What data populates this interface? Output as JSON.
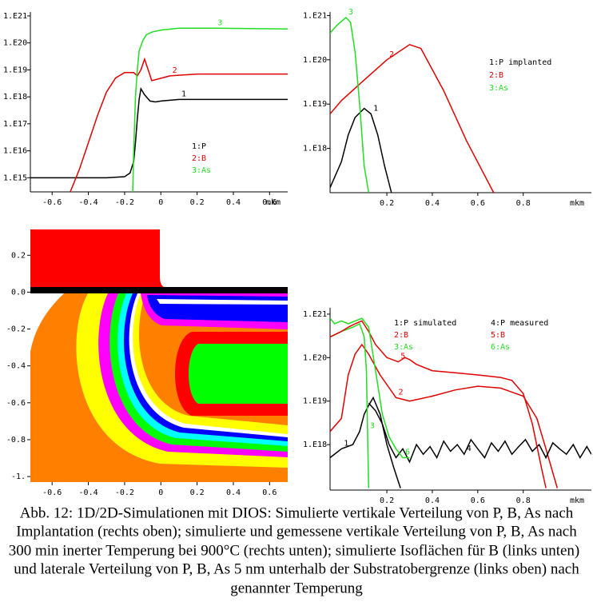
{
  "chart_data": [
    {
      "type": "line",
      "log": true,
      "xlabel": "mkm",
      "xlim": [
        -0.72,
        0.7
      ],
      "xticks": [
        -0.6,
        -0.4,
        -0.2,
        0,
        0.2,
        0.4,
        0.6
      ],
      "ylim": [
        300000000000000.0,
        1.4e+21
      ],
      "yticks": [
        {
          "value": 1000000000000000.0,
          "label": "1.E15"
        },
        {
          "value": 1e+16,
          "label": "1.E16"
        },
        {
          "value": 1e+17,
          "label": "1.E17"
        },
        {
          "value": 1e+18,
          "label": "1.E18"
        },
        {
          "value": 1e+19,
          "label": "1.E19"
        },
        {
          "value": 1e+20,
          "label": "1.E20"
        },
        {
          "value": 1e+21,
          "label": "1.E21"
        }
      ],
      "series": [
        {
          "name": "1:P",
          "label": "1",
          "color": "#000000",
          "x": [
            -0.72,
            -0.3,
            -0.2,
            -0.17,
            -0.15,
            -0.14,
            -0.13,
            -0.12,
            -0.11,
            -0.09,
            -0.06,
            -0.03,
            0.0,
            0.1,
            0.2,
            0.4,
            0.7
          ],
          "values": [
            1000000000000000.0,
            1000000000000000.0,
            1100000000000000.0,
            1500000000000000.0,
            4000000000000000.0,
            2e+16,
            1.5e+17,
            8e+17,
            2e+18,
            1.2e+18,
            7e+17,
            6.5e+17,
            7e+17,
            8e+17,
            8e+17,
            8e+17,
            8e+17
          ]
        },
        {
          "name": "2:B",
          "label": "2",
          "color": "#e00000",
          "x": [
            -0.5,
            -0.45,
            -0.4,
            -0.35,
            -0.3,
            -0.25,
            -0.2,
            -0.15,
            -0.13,
            -0.11,
            -0.09,
            -0.07,
            -0.05,
            -0.02,
            0.05,
            0.2,
            0.4,
            0.7
          ],
          "values": [
            300000000000000.0,
            2000000000000000.0,
            2e+16,
            2e+17,
            1.5e+18,
            5e+18,
            8e+18,
            8e+18,
            6e+18,
            1e+19,
            2.5e+19,
            1e+19,
            4e+18,
            4.5e+18,
            6e+18,
            7e+18,
            7e+18,
            7e+18
          ]
        },
        {
          "name": "3:As",
          "label": "3",
          "color": "#22dd22",
          "x": [
            -0.155,
            -0.15,
            -0.14,
            -0.13,
            -0.12,
            -0.1,
            -0.08,
            -0.05,
            0,
            0.1,
            0.3,
            0.7
          ],
          "values": [
            300000000000000.0,
            1e+16,
            1e+18,
            1e+19,
            5e+19,
            1.2e+20,
            2e+20,
            2.5e+20,
            3e+20,
            3.5e+20,
            3.5e+20,
            3.3e+20
          ]
        }
      ]
    },
    {
      "type": "line",
      "log": true,
      "xlabel": "mkm",
      "xlim": [
        -0.05,
        1.1
      ],
      "xticks": [
        0.2,
        0.4,
        0.6,
        0.8
      ],
      "ylim": [
        1e+17,
        1.2e+21
      ],
      "yticks": [
        {
          "value": 1e+18,
          "label": "1.E18"
        },
        {
          "value": 1e+19,
          "label": "1.E19"
        },
        {
          "value": 1e+20,
          "label": "1.E20"
        },
        {
          "value": 1e+21,
          "label": "1.E21"
        }
      ],
      "series": [
        {
          "name": "1:P implanted",
          "label": "1",
          "color": "#000000",
          "x": [
            -0.05,
            0,
            0.03,
            0.06,
            0.1,
            0.13,
            0.16,
            0.19,
            0.22
          ],
          "values": [
            1.3e+17,
            5e+17,
            2e+18,
            5e+18,
            8e+18,
            6e+18,
            2e+18,
            4e+17,
            1e+17
          ]
        },
        {
          "name": "2:B",
          "label": "2",
          "color": "#e00000",
          "x": [
            -0.05,
            0,
            0.1,
            0.2,
            0.3,
            0.35,
            0.45,
            0.55,
            0.67
          ],
          "values": [
            6e+18,
            1.2e+19,
            3.5e+19,
            1e+20,
            2.2e+20,
            1.8e+20,
            2e+19,
            1.5e+18,
            1e+17
          ]
        },
        {
          "name": "3:As",
          "label": "3",
          "color": "#22dd22",
          "x": [
            -0.05,
            -0.02,
            0.02,
            0.04,
            0.06,
            0.08,
            0.1,
            0.12
          ],
          "values": [
            4e+20,
            6e+20,
            9e+20,
            7e+20,
            1.5e+20,
            1e+19,
            4e+17,
            1e+17
          ]
        }
      ]
    },
    {
      "type": "contour",
      "xlim": [
        -0.72,
        0.7
      ],
      "xticks": [
        -0.6,
        -0.4,
        -0.2,
        0,
        0.2,
        0.4,
        0.6
      ],
      "ylim": [
        -1.03,
        0.34
      ],
      "yticks": [
        0.2,
        {
          "value": 0,
          "label": "0.0"
        },
        -0.2,
        -0.4,
        -0.6,
        -0.8,
        {
          "value": -1,
          "label": "-1."
        }
      ]
    },
    {
      "type": "line",
      "log": true,
      "xlabel": "mkm",
      "xlim": [
        -0.05,
        1.1
      ],
      "xticks": [
        0.2,
        0.4,
        0.6,
        0.8
      ],
      "ylim": [
        9e+16,
        1.4e+21
      ],
      "yticks": [
        {
          "value": 1e+18,
          "label": "1.E18"
        },
        {
          "value": 1e+19,
          "label": "1.E19"
        },
        {
          "value": 1e+20,
          "label": "1.E20"
        },
        {
          "value": 1e+21,
          "label": "1.E21"
        }
      ],
      "series": [
        {
          "name": "1:P simulated",
          "label": "1",
          "color": "#000000",
          "x": [
            -0.05,
            0,
            0.05,
            0.08,
            0.1,
            0.12,
            0.14,
            0.17,
            0.2,
            0.23,
            0.26
          ],
          "values": [
            5e+17,
            8e+17,
            1e+18,
            2e+18,
            5e+18,
            8e+18,
            1.2e+19,
            5e+18,
            1e+18,
            3e+17,
            1e+17
          ]
        },
        {
          "name": "2:B",
          "label": "2",
          "color": "#e00000",
          "x": [
            -0.05,
            0,
            0.03,
            0.06,
            0.09,
            0.12,
            0.17,
            0.24,
            0.3,
            0.4,
            0.5,
            0.6,
            0.7,
            0.8,
            0.86,
            0.9,
            0.95
          ],
          "values": [
            2e+18,
            4e+18,
            4e+19,
            1.2e+20,
            2e+20,
            1.2e+20,
            4e+19,
            1.2e+19,
            1e+19,
            1.3e+19,
            1.8e+19,
            2.2e+19,
            2e+19,
            1.3e+19,
            4e+18,
            8e+17,
            1e+17
          ]
        },
        {
          "name": "3:As",
          "label": "3",
          "color": "#22dd22",
          "x": [
            -0.05,
            0,
            0.05,
            0.08,
            0.1,
            0.11,
            0.115,
            0.12
          ],
          "values": [
            3e+20,
            4e+20,
            5e+20,
            6e+20,
            3e+20,
            5e+19,
            2e+18,
            1e+17
          ]
        },
        {
          "name": "4:P measured",
          "label": "4",
          "color": "#000000",
          "x": [
            0.12,
            0.15,
            0.18,
            0.21,
            0.24,
            0.27,
            0.3,
            0.33,
            0.36,
            0.39,
            0.42,
            0.45,
            0.48,
            0.51,
            0.54,
            0.57,
            0.6,
            0.63,
            0.66,
            0.69,
            0.72,
            0.75,
            0.78,
            0.81,
            0.84,
            0.87,
            0.9,
            0.93,
            0.96,
            0.99,
            1.02,
            1.05,
            1.08,
            1.1
          ],
          "values": [
            9e+18,
            6e+18,
            3e+18,
            1e+18,
            5e+17,
            8e+17,
            4e+17,
            1e+18,
            6e+17,
            9e+17,
            5e+17,
            1.2e+18,
            7e+17,
            1e+18,
            6e+17,
            1.3e+18,
            8e+17,
            5e+17,
            1.1e+18,
            7e+17,
            1.2e+18,
            6e+17,
            9e+17,
            1.3e+18,
            7e+17,
            1e+18,
            5e+17,
            1.1e+18,
            8e+17,
            6e+17,
            1e+18,
            5e+17,
            9e+17,
            6e+17
          ]
        },
        {
          "name": "5:B",
          "label": "5",
          "color": "#e00000",
          "x": [
            -0.05,
            0,
            0.03,
            0.06,
            0.09,
            0.12,
            0.15,
            0.2,
            0.25,
            0.28,
            0.3,
            0.33,
            0.4,
            0.5,
            0.6,
            0.7,
            0.75,
            0.8,
            0.84,
            0.88,
            0.9
          ],
          "values": [
            3e+20,
            4e+20,
            5e+20,
            6e+20,
            7e+20,
            4e+20,
            2e+20,
            1e+20,
            8e+19,
            1e+20,
            9e+19,
            7e+19,
            5e+19,
            4.5e+19,
            4e+19,
            3.5e+19,
            3e+19,
            1.5e+19,
            3e+18,
            3e+17,
            1e+17
          ]
        },
        {
          "name": "6:As",
          "label": "6",
          "color": "#22dd22",
          "x": [
            -0.05,
            -0.03,
            0,
            0.03,
            0.06,
            0.09,
            0.12,
            0.15,
            0.18,
            0.21,
            0.24,
            0.27,
            0.3
          ],
          "values": [
            8e+20,
            6e+20,
            7e+20,
            6e+20,
            7e+20,
            8e+20,
            5e+20,
            5e+19,
            5e+18,
            1.5e+18,
            8e+17,
            5e+17,
            5e+17
          ]
        }
      ]
    }
  ],
  "caption": [
    "Abb. 12: 1D/2D-Simulationen mit DIOS: Simulierte vertikale Verteilung von P, B, As nach",
    "Implantation (rechts oben); simulierte und gemessene vertikale Verteilung von P, B, As nach",
    "300 min inerter Temperung bei 900°C (rechts unten); simulierte Isoflächen für B (links unten)",
    "und laterale Verteilung von P, B, As 5 nm unterhalb der Substratobergrenze (links oben) nach",
    "genannter Temperung"
  ]
}
